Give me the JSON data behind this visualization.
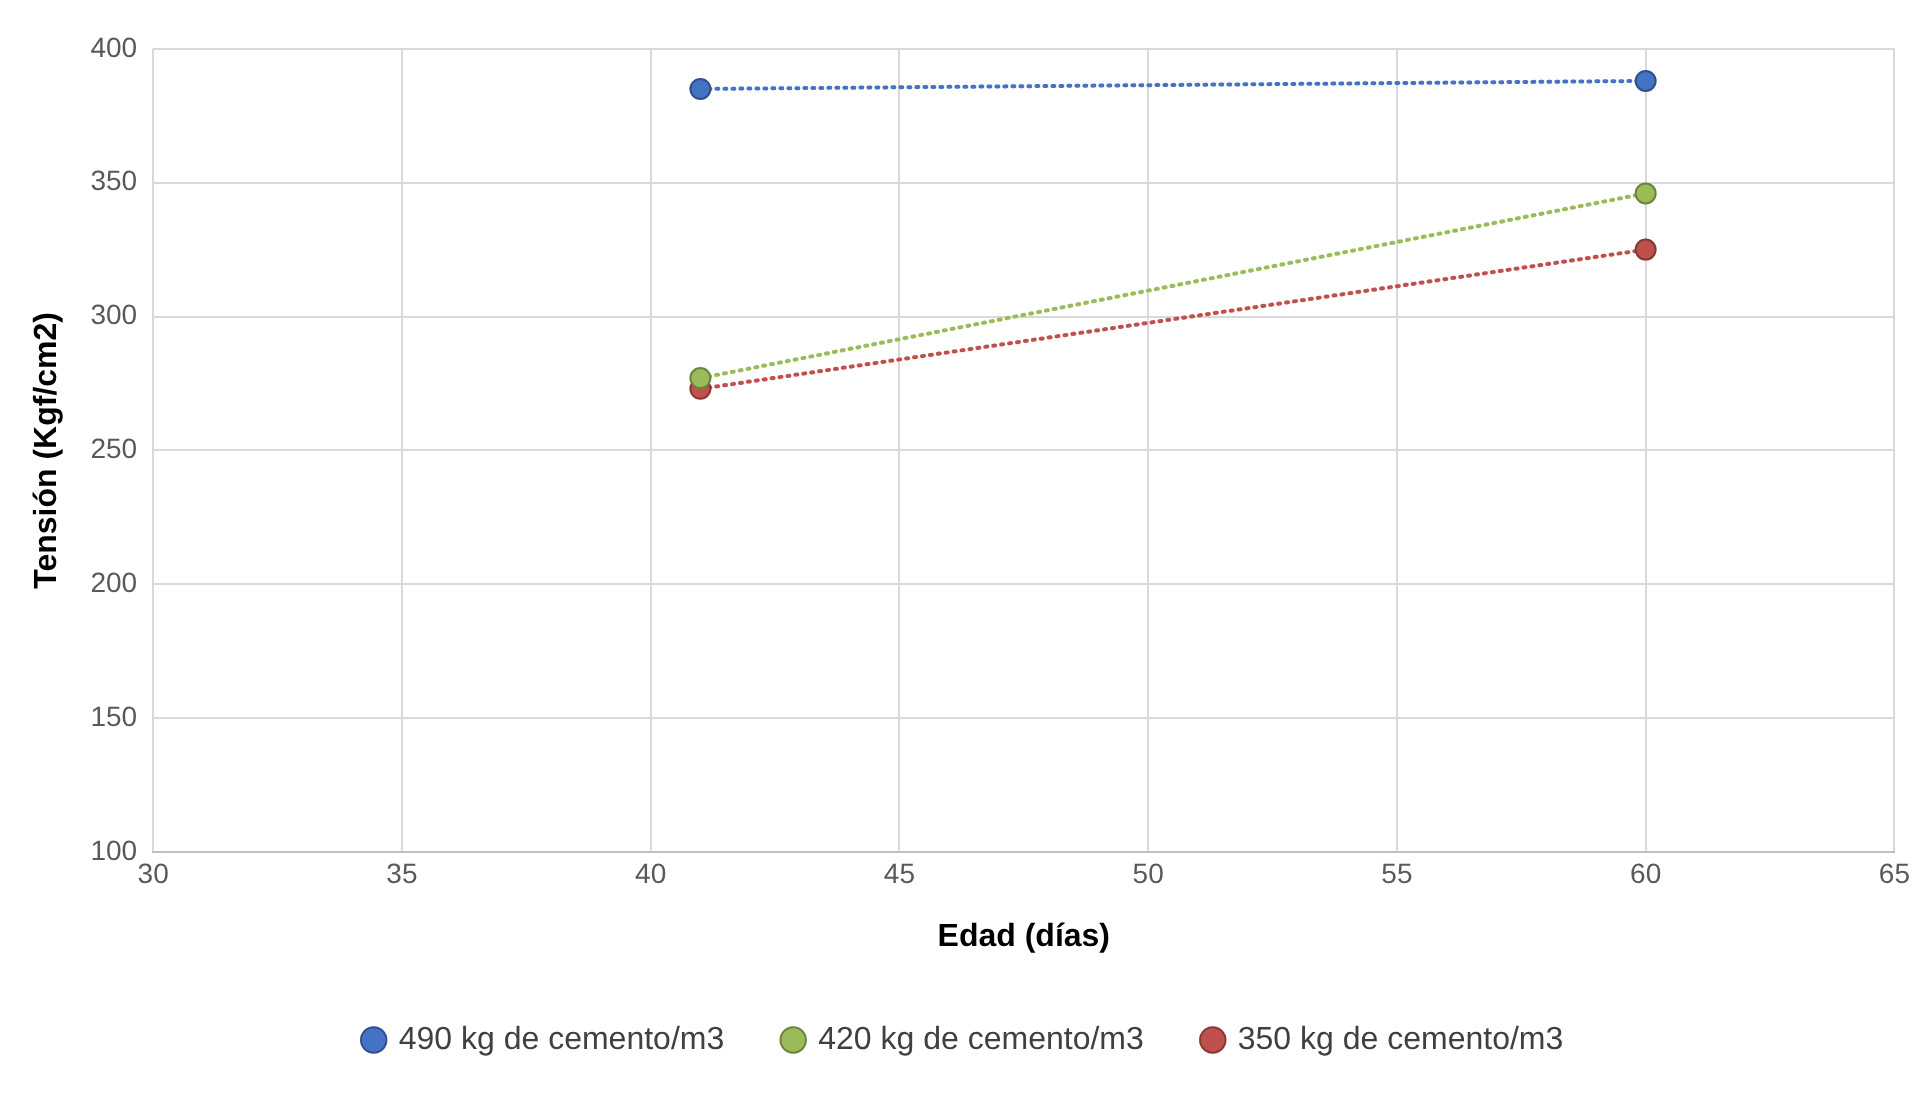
{
  "chart_data": {
    "type": "line",
    "xlabel": "Edad (días)",
    "ylabel": "Tensión (Kgf/cm2)",
    "x": [
      41,
      60
    ],
    "xlim": [
      30,
      65
    ],
    "xticks": [
      30,
      35,
      40,
      45,
      50,
      55,
      60,
      65
    ],
    "ylim": [
      100,
      400
    ],
    "yticks": [
      100,
      150,
      200,
      250,
      300,
      350,
      400
    ],
    "grid": true,
    "legend": "bottom",
    "marker": "circle",
    "line_style": "dotted",
    "series": [
      {
        "name": "490 kg de cemento/m3",
        "color": "#4472c4",
        "values": [
          385,
          388
        ]
      },
      {
        "name": "420 kg de cemento/m3",
        "color": "#9bbb59",
        "values": [
          277,
          346
        ]
      },
      {
        "name": "350 kg de cemento/m3",
        "color": "#c0504d",
        "values": [
          273,
          325
        ]
      }
    ]
  }
}
